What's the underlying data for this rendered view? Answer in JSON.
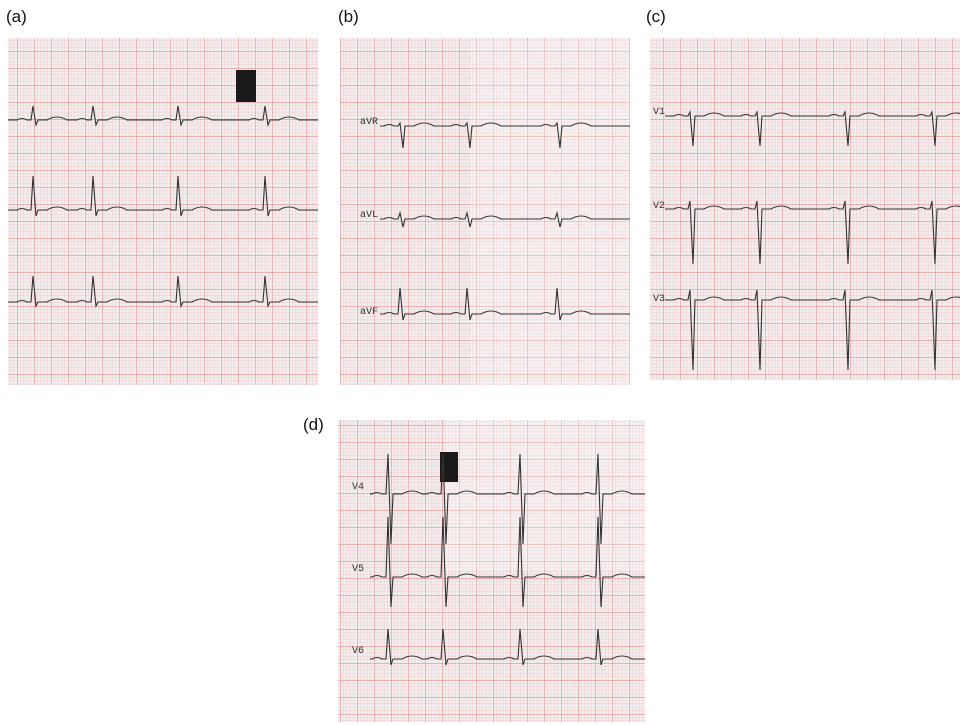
{
  "panels": [
    {
      "label": "(a)"
    },
    {
      "label": "(b)",
      "leads": [
        "aVR",
        "aVL",
        "aVF"
      ]
    },
    {
      "label": "(c)",
      "leads": [
        "V1",
        "V2",
        "V3"
      ]
    },
    {
      "label": "(d)",
      "leads": [
        "V4",
        "V5",
        "V6"
      ]
    }
  ]
}
